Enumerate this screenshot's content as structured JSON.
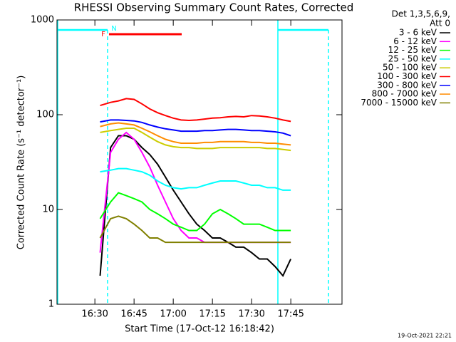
{
  "chart_data": {
    "type": "line",
    "title": "RHESSI Observing Summary Count Rates, Corrected",
    "x_label": "Start Time (17-Oct-12 16:18:42)",
    "y_label": "Corrected Count Rate (s⁻¹ detector⁻¹)",
    "log_y": true,
    "legend_header": [
      "Det 1,3,5,6,9,",
      "Att 0"
    ],
    "legend_position": "right",
    "footer": "19-Oct-2021 22:21",
    "annotations": [
      {
        "text": "F",
        "color": "#ff0000"
      },
      {
        "text": "N",
        "color": "#00ffff"
      }
    ],
    "xlim": [
      975.5,
      1084.6
    ],
    "xticks": [
      {
        "value": 990,
        "label": "16:30"
      },
      {
        "value": 1005,
        "label": "16:45"
      },
      {
        "value": 1020,
        "label": "17:00"
      },
      {
        "value": 1035,
        "label": "17:15"
      },
      {
        "value": 1050,
        "label": "17:30"
      },
      {
        "value": 1065,
        "label": "17:45"
      }
    ],
    "ylim": [
      1,
      1000
    ],
    "yticks": [
      1,
      10,
      100,
      1000
    ],
    "x": [
      992,
      996,
      999,
      1002,
      1005,
      1008,
      1011,
      1014,
      1017,
      1020,
      1023,
      1026,
      1029,
      1032,
      1035,
      1038,
      1041,
      1044,
      1047,
      1050,
      1053,
      1056,
      1059,
      1062,
      1065
    ],
    "series": [
      {
        "name": "3 - 6 keV",
        "color": "#000000",
        "values": [
          2,
          45,
          60,
          60,
          55,
          45,
          38,
          30,
          22,
          16,
          12,
          9,
          7,
          6,
          5,
          5,
          4.5,
          4,
          4,
          3.5,
          3,
          3,
          2.5,
          2,
          3
        ]
      },
      {
        "name": "6 - 12 keV",
        "color": "#ff00ff",
        "values": [
          3.5,
          40,
          55,
          65,
          55,
          40,
          28,
          18,
          12,
          8,
          6,
          5,
          5,
          4.5,
          4.5,
          4.5,
          4.5,
          4.5,
          4.5,
          4.5,
          4.5,
          4.5,
          4.5,
          4.5,
          4.5
        ]
      },
      {
        "name": "12 - 25 keV",
        "color": "#00ff00",
        "values": [
          8,
          12,
          15,
          14,
          13,
          12,
          10,
          9,
          8,
          7,
          6.5,
          6,
          6,
          7,
          9,
          10,
          9,
          8,
          7,
          7,
          7,
          6.5,
          6,
          6,
          6
        ]
      },
      {
        "name": "25 - 50 keV",
        "color": "#00ffff",
        "values": [
          25,
          26,
          27,
          27,
          26,
          25,
          23,
          20,
          18,
          17,
          16.5,
          17,
          17,
          18,
          19,
          20,
          20,
          20,
          19,
          18,
          18,
          17,
          17,
          16,
          16
        ]
      },
      {
        "name": "50 - 100 keV",
        "color": "#cccc00",
        "values": [
          65,
          68,
          70,
          72,
          72,
          65,
          58,
          52,
          48,
          46,
          45,
          45,
          44,
          44,
          44,
          45,
          45,
          45,
          45,
          45,
          45,
          44,
          44,
          43,
          42
        ]
      },
      {
        "name": "100 - 300 keV",
        "color": "#ff0000",
        "values": [
          125,
          135,
          140,
          148,
          145,
          130,
          115,
          105,
          98,
          92,
          88,
          87,
          88,
          90,
          92,
          93,
          95,
          96,
          95,
          98,
          97,
          95,
          92,
          88,
          85
        ]
      },
      {
        "name": "300 - 800 keV",
        "color": "#0000ff",
        "values": [
          84,
          88,
          88,
          87,
          86,
          83,
          78,
          74,
          71,
          69,
          67,
          67,
          67,
          68,
          68,
          69,
          70,
          70,
          69,
          68,
          68,
          67,
          66,
          64,
          60
        ]
      },
      {
        "name": "800 - 7000 keV",
        "color": "#ff8c00",
        "values": [
          75,
          80,
          82,
          80,
          78,
          72,
          66,
          60,
          55,
          52,
          50,
          50,
          50,
          51,
          51,
          52,
          52,
          52,
          52,
          51,
          51,
          50,
          50,
          49,
          48
        ]
      },
      {
        "name": "7000 - 15000 keV",
        "color": "#808000",
        "values": [
          5,
          8,
          8.5,
          8,
          7,
          6,
          5,
          5,
          4.5,
          4.5,
          4.5,
          4.5,
          4.5,
          4.5,
          4.5,
          4.5,
          4.5,
          4.5,
          4.5,
          4.5,
          4.5,
          4.5,
          4.5,
          4.5,
          4.5
        ]
      }
    ]
  }
}
